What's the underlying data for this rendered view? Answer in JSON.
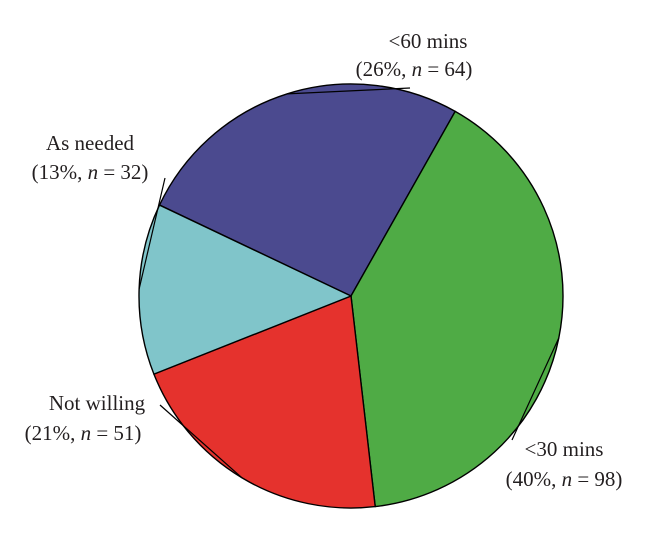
{
  "chart_data": {
    "type": "pie",
    "slices": [
      {
        "key": "lt60",
        "label": "<60 mins",
        "percent": 26,
        "n": 64,
        "color": "#4b4a8f"
      },
      {
        "key": "lt30",
        "label": "<30 mins",
        "percent": 40,
        "n": 98,
        "color": "#4fab45"
      },
      {
        "key": "notwilling",
        "label": "Not willing",
        "percent": 21,
        "n": 51,
        "color": "#e5322d"
      },
      {
        "key": "asneeded",
        "label": "As needed",
        "percent": 13,
        "n": 32,
        "color": "#80c5ca"
      }
    ]
  }
}
